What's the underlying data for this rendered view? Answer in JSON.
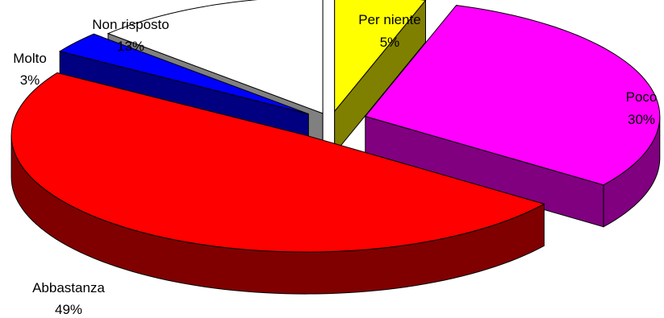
{
  "chart_data": {
    "type": "pie",
    "style": "3d-exploded",
    "title": "",
    "slices": [
      {
        "label": "Per niente",
        "percent_text": "5%",
        "value": 5,
        "top_color": "#FFFF00",
        "side_color": "#808000"
      },
      {
        "label": "Poco",
        "percent_text": "30%",
        "value": 30,
        "top_color": "#FF00FF",
        "side_color": "#800080"
      },
      {
        "label": "Abbastanza",
        "percent_text": "49%",
        "value": 49,
        "top_color": "#FF0000",
        "side_color": "#800000"
      },
      {
        "label": "Molto",
        "percent_text": "3%",
        "value": 3,
        "top_color": "#0000FF",
        "side_color": "#000080"
      },
      {
        "label": "Non risposto",
        "percent_text": "13%",
        "value": 13,
        "top_color": "#FFFFFF",
        "side_color": "#808080"
      }
    ]
  }
}
